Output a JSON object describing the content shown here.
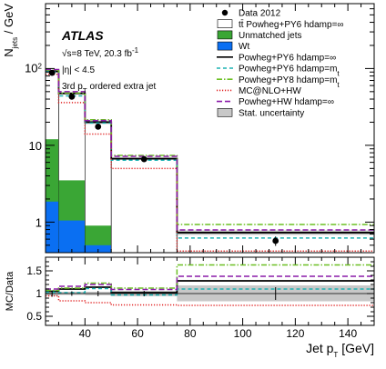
{
  "chart_data": [
    {
      "type": "bar",
      "panel": "main",
      "xlabel": "Jet p",
      "xlabel_sub": "T",
      "xlabel_unit": " [GeV]",
      "ylabel": "N",
      "ylabel_sub": "jets",
      "ylabel_unit": " / GeV",
      "xlim": [
        25,
        150
      ],
      "ylim": [
        0.4,
        700
      ],
      "yscale": "log",
      "x_ticks": [
        40,
        60,
        80,
        100,
        120,
        140
      ],
      "y_ticks": [
        {
          "v": 1,
          "label": "1"
        },
        {
          "v": 10,
          "label": "10"
        },
        {
          "v": 100,
          "label": "10²"
        }
      ],
      "bin_edges": [
        25,
        30,
        40,
        50,
        75,
        150
      ],
      "annotations": {
        "experiment": "ATLAS",
        "line1": "√s=8 TeV, 20.3 fb⁻¹",
        "line2": "|η| < 4.5",
        "line3": "3rd p",
        "line3_sub": "T",
        "line3_rest": " ordered extra jet"
      },
      "data": {
        "name": "Data 2012",
        "x": [
          27.5,
          35,
          45,
          62.5,
          112.5
        ],
        "y": [
          88,
          43,
          17.5,
          6.6,
          0.57
        ],
        "yerr": [
          6,
          2,
          1,
          0.4,
          0.08
        ]
      },
      "stat_band": {
        "name": "Stat. uncertainty",
        "low": [
          88,
          46,
          19,
          6.5,
          0.68
        ],
        "high": [
          96,
          49,
          21,
          6.9,
          0.78
        ]
      },
      "stack": [
        {
          "name": "Wt",
          "color": "#0a6ff2",
          "values": [
            1.85,
            1.05,
            0.5,
            0,
            0
          ]
        },
        {
          "name": "Unmatched jets",
          "color": "#3aa635",
          "values": [
            12,
            3.5,
            0.9,
            0,
            0
          ]
        },
        {
          "name": "tt̄ Powheg+PY6 hdamp=∞",
          "color": "#ffffff",
          "values": [
            92,
            47.5,
            20,
            6.7,
            0.73
          ]
        }
      ],
      "series": [
        {
          "name": "Powheg+PY6 hdamp=∞",
          "color": "#000000",
          "dash": "",
          "values": [
            92,
            47.5,
            20,
            6.7,
            0.73
          ]
        },
        {
          "name": "Powheg+PY6 hdamp=m",
          "name_sub": "t",
          "color": "#1db3b3",
          "dash": "4,3",
          "values": [
            91,
            44,
            19.5,
            6.4,
            0.62
          ]
        },
        {
          "name": "Powheg+PY8 hdamp=m",
          "name_sub": "t",
          "color": "#6cc024",
          "dash": "6,2,1.5,2",
          "values": [
            95,
            48,
            21.5,
            7.4,
            0.93
          ]
        },
        {
          "name": "MC@NLO+HW",
          "color": "#e02020",
          "dash": "1.2,1.8",
          "values": [
            84,
            36,
            14,
            5.0,
            0.42
          ]
        },
        {
          "name": "Powheg+HW hdamp=∞",
          "color": "#8a1aa8",
          "dash": "6,3",
          "values": [
            97,
            50,
            21,
            7.2,
            0.79
          ]
        }
      ],
      "legend": {
        "placement": "top-right"
      }
    },
    {
      "type": "line",
      "panel": "ratio",
      "ylabel": "MC/Data",
      "ylim": [
        0.3,
        1.8
      ],
      "y_ticks": [
        0.5,
        1,
        1.5
      ],
      "bin_edges": [
        25,
        30,
        40,
        50,
        75,
        150
      ],
      "stat_band": {
        "low": [
          0.95,
          0.97,
          0.96,
          0.94,
          0.83
        ],
        "high": [
          1.06,
          1.04,
          1.04,
          1.06,
          1.18
        ]
      },
      "data_ratio": {
        "x": [
          27.5,
          35,
          45,
          62.5,
          112.5
        ],
        "y": [
          1,
          1,
          1,
          1,
          1
        ],
        "yerr": [
          0.07,
          0.05,
          0.06,
          0.06,
          0.14
        ]
      },
      "series": [
        {
          "name": "Powheg+PY6 hdamp=∞",
          "values": [
            1.05,
            1.1,
            1.14,
            1.02,
            1.28
          ]
        },
        {
          "name": "Powheg+PY6 hdamp=mt",
          "values": [
            1.03,
            1.02,
            1.11,
            0.97,
            1.1
          ]
        },
        {
          "name": "Powheg+PY8 hdamp=mt",
          "values": [
            1.07,
            1.12,
            1.23,
            1.12,
            1.63
          ]
        },
        {
          "name": "MC@NLO+HW",
          "values": [
            0.95,
            0.84,
            0.8,
            0.75,
            0.74
          ]
        },
        {
          "name": "Powheg+HW hdamp=∞",
          "values": [
            1.1,
            1.16,
            1.2,
            1.09,
            1.38
          ]
        }
      ]
    }
  ]
}
